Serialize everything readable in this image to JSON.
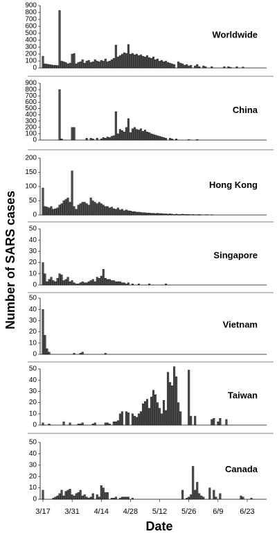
{
  "chart_data": [
    {
      "type": "bar",
      "title": "Worldwide",
      "color": "#4d4d4d",
      "ylim": [
        0,
        900
      ],
      "yticks": [
        0,
        100,
        200,
        300,
        400,
        500,
        600,
        700,
        800,
        900
      ],
      "values": [
        170,
        60,
        55,
        50,
        45,
        40,
        40,
        35,
        830,
        100,
        90,
        80,
        60,
        70,
        200,
        210,
        60,
        80,
        90,
        120,
        70,
        100,
        110,
        80,
        90,
        120,
        100,
        90,
        110,
        100,
        130,
        90,
        100,
        120,
        140,
        330,
        160,
        180,
        200,
        220,
        210,
        340,
        200,
        210,
        190,
        200,
        180,
        190,
        170,
        160,
        180,
        150,
        140,
        160,
        120,
        130,
        100,
        110,
        90,
        100,
        80,
        70,
        60,
        50,
        0,
        90,
        70,
        60,
        40,
        50,
        30,
        40,
        0,
        30,
        50,
        20,
        0,
        30,
        20,
        0,
        0,
        20,
        0,
        0,
        0,
        0,
        0,
        20,
        0,
        20,
        10,
        0,
        0,
        20,
        0,
        0,
        15,
        0,
        0,
        0,
        0,
        0,
        0,
        0,
        0,
        0,
        0,
        0
      ]
    },
    {
      "type": "bar",
      "title": "China",
      "color": "#4d4d4d",
      "ylim": [
        0,
        900
      ],
      "yticks": [
        0,
        100,
        200,
        300,
        400,
        500,
        600,
        700,
        800,
        900
      ],
      "values": [
        0,
        0,
        0,
        0,
        0,
        0,
        0,
        0,
        800,
        20,
        0,
        0,
        0,
        0,
        200,
        200,
        0,
        0,
        0,
        0,
        0,
        30,
        0,
        30,
        20,
        0,
        30,
        0,
        20,
        40,
        30,
        50,
        40,
        60,
        70,
        450,
        100,
        170,
        150,
        130,
        200,
        340,
        120,
        180,
        200,
        170,
        160,
        180,
        140,
        160,
        130,
        120,
        100,
        90,
        80,
        70,
        60,
        50,
        40,
        30,
        0,
        30,
        20,
        0,
        20,
        0,
        0,
        0,
        0,
        0,
        10,
        0,
        0,
        0,
        10,
        0,
        0,
        0,
        0,
        0,
        0,
        0,
        0,
        0,
        0,
        0,
        0,
        0,
        0,
        0,
        0,
        0,
        0,
        0,
        0,
        0,
        0,
        0,
        0,
        0,
        0,
        0,
        0,
        0,
        0,
        0,
        0,
        0
      ]
    },
    {
      "type": "bar",
      "title": "Hong Kong",
      "color": "#4d4d4d",
      "ylim": [
        0,
        200
      ],
      "yticks": [
        0,
        50,
        100,
        150,
        200
      ],
      "values": [
        95,
        30,
        28,
        25,
        30,
        20,
        22,
        25,
        35,
        40,
        50,
        55,
        60,
        45,
        155,
        30,
        20,
        35,
        40,
        45,
        45,
        40,
        35,
        60,
        50,
        45,
        40,
        45,
        40,
        35,
        30,
        30,
        25,
        28,
        22,
        20,
        25,
        18,
        20,
        15,
        18,
        15,
        14,
        12,
        12,
        10,
        10,
        9,
        8,
        8,
        7,
        7,
        6,
        6,
        5,
        6,
        5,
        5,
        4,
        4,
        3,
        4,
        3,
        2,
        3,
        2,
        2,
        3,
        2,
        2,
        2,
        1,
        2,
        1,
        1,
        2,
        1,
        0,
        1,
        1,
        0,
        1,
        0,
        0,
        0,
        0,
        0,
        0,
        0,
        0,
        0,
        0,
        0,
        0,
        0,
        0,
        0,
        0,
        0,
        0,
        0,
        0,
        0,
        0,
        0,
        0,
        0,
        0
      ]
    },
    {
      "type": "bar",
      "title": "Singapore",
      "color": "#4d4d4d",
      "ylim": [
        0,
        50
      ],
      "yticks": [
        0,
        10,
        20,
        30,
        40,
        50
      ],
      "values": [
        20,
        10,
        3,
        5,
        7,
        4,
        3,
        6,
        10,
        9,
        4,
        5,
        7,
        3,
        4,
        2,
        1,
        1,
        2,
        3,
        2,
        2,
        3,
        4,
        5,
        3,
        7,
        6,
        8,
        14,
        6,
        5,
        5,
        4,
        4,
        3,
        3,
        3,
        2,
        2,
        1,
        2,
        0,
        1,
        0,
        0,
        1,
        0,
        0,
        0,
        0,
        1,
        0,
        0,
        0,
        0,
        0,
        0,
        0,
        1,
        0,
        0,
        0,
        0,
        0,
        0,
        0,
        0,
        0,
        0,
        0,
        0,
        0,
        0,
        0,
        0,
        0,
        0,
        0,
        0,
        0,
        0,
        0,
        0,
        0,
        0,
        0,
        0,
        0,
        0,
        0,
        0,
        0,
        0,
        0,
        0,
        0,
        0,
        0,
        0,
        0,
        0,
        0,
        0,
        0,
        0,
        0,
        0
      ]
    },
    {
      "type": "bar",
      "title": "Vietnam",
      "color": "#4d4d4d",
      "ylim": [
        0,
        50
      ],
      "yticks": [
        0,
        10,
        20,
        30,
        40,
        50
      ],
      "values": [
        40,
        17,
        5,
        2,
        0,
        0,
        0,
        0,
        0,
        0,
        0,
        0,
        0,
        0,
        0,
        1,
        0,
        0,
        1,
        2,
        0,
        0,
        0,
        0,
        0,
        0,
        0,
        0,
        0,
        0,
        1,
        0,
        0,
        0,
        0,
        0,
        0,
        0,
        0,
        0,
        0,
        0,
        0,
        0,
        0,
        0,
        0,
        0,
        0,
        0,
        0,
        0,
        0,
        0,
        0,
        0,
        0,
        0,
        0,
        0,
        0,
        0,
        0,
        0,
        0,
        0,
        0,
        0,
        0,
        0,
        0,
        0,
        0,
        0,
        0,
        0,
        0,
        0,
        0,
        0,
        0,
        0,
        0,
        0,
        0,
        0,
        0,
        0,
        0,
        0,
        0,
        0,
        0,
        0,
        0,
        0,
        0,
        0,
        0,
        0,
        0,
        0,
        0,
        0,
        0,
        0,
        0,
        0
      ]
    },
    {
      "type": "bar",
      "title": "Taiwan",
      "color": "#4d4d4d",
      "ylim": [
        0,
        50
      ],
      "yticks": [
        0,
        10,
        20,
        30,
        40,
        50
      ],
      "values": [
        2,
        0,
        0,
        1,
        0,
        0,
        0,
        0,
        0,
        0,
        3,
        0,
        0,
        2,
        0,
        0,
        0,
        1,
        1,
        2,
        0,
        0,
        0,
        0,
        1,
        2,
        0,
        0,
        0,
        0,
        2,
        2,
        1,
        0,
        3,
        3,
        4,
        10,
        12,
        0,
        12,
        11,
        0,
        10,
        8,
        7,
        10,
        12,
        19,
        21,
        23,
        15,
        25,
        31,
        27,
        20,
        15,
        10,
        22,
        13,
        47,
        38,
        35,
        52,
        43,
        20,
        12,
        0,
        0,
        0,
        49,
        8,
        0,
        8,
        0,
        0,
        0,
        0,
        0,
        0,
        0,
        5,
        6,
        0,
        3,
        6,
        0,
        0,
        5,
        0,
        0,
        0,
        0,
        0,
        0,
        0,
        0,
        0,
        0,
        0,
        0,
        0,
        0,
        0,
        0,
        0,
        0,
        0
      ]
    },
    {
      "type": "bar",
      "title": "Canada",
      "color": "#4d4d4d",
      "ylim": [
        0,
        50
      ],
      "yticks": [
        0,
        10,
        20,
        30,
        40,
        50
      ],
      "values": [
        8,
        0,
        0,
        0,
        0,
        1,
        2,
        3,
        5,
        8,
        3,
        7,
        8,
        9,
        4,
        3,
        5,
        6,
        8,
        3,
        4,
        2,
        1,
        2,
        5,
        0,
        4,
        2,
        12,
        10,
        6,
        6,
        0,
        1,
        1,
        2,
        0,
        1,
        2,
        2,
        2,
        2,
        0,
        1,
        0,
        0,
        0,
        0,
        0,
        0,
        0,
        0,
        0,
        0,
        0,
        0,
        0,
        0,
        0,
        0,
        0,
        0,
        0,
        0,
        0,
        0,
        0,
        8,
        0,
        1,
        2,
        4,
        29,
        8,
        15,
        5,
        3,
        2,
        0,
        0,
        10,
        0,
        8,
        2,
        0,
        5,
        0,
        0,
        0,
        0,
        0,
        0,
        0,
        0,
        0,
        3,
        2,
        0,
        0,
        0,
        1,
        0,
        0,
        0,
        0,
        0,
        0,
        0
      ],
      "categories": [
        "3/17",
        null,
        null,
        null,
        null,
        null,
        null,
        null,
        null,
        null,
        null,
        null,
        null,
        null,
        "3/31",
        null,
        null,
        null,
        null,
        null,
        null,
        null,
        null,
        null,
        null,
        null,
        null,
        null,
        "4/14",
        null,
        null,
        null,
        null,
        null,
        null,
        null,
        null,
        null,
        null,
        null,
        null,
        null,
        "4/28",
        null,
        null,
        null,
        null,
        null,
        null,
        null,
        null,
        null,
        null,
        null,
        null,
        null,
        "5/12",
        null,
        null,
        null,
        null,
        null,
        null,
        null,
        null,
        null,
        null,
        null,
        null,
        null,
        "5/26",
        null,
        null,
        null,
        null,
        null,
        null,
        null,
        null,
        null,
        null,
        null,
        null,
        null,
        "6/9",
        null,
        null,
        null,
        null,
        null,
        null,
        null,
        null,
        null,
        null,
        null,
        null,
        null,
        "6/23",
        null,
        null,
        null,
        null,
        null,
        null,
        null,
        null,
        null
      ],
      "x_label": "Date",
      "y_label": "Number of SARS cases"
    }
  ]
}
